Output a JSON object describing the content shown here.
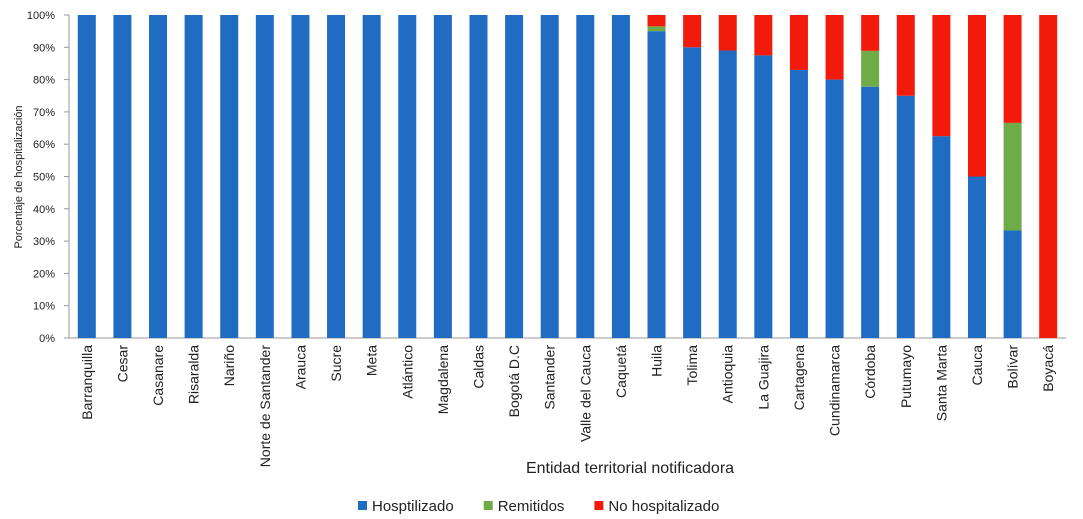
{
  "chart_data": {
    "type": "stacked_bar",
    "x_label": "Entidad territorial notificadora",
    "y_label": "Porcentaje de hospitalización",
    "categories": [
      "Barranquilla",
      "Cesar",
      "Casanare",
      "Risaralda",
      "Nariño",
      "Norte de Santander",
      "Arauca",
      "Sucre",
      "Meta",
      "Atlántico",
      "Magdalena",
      "Caldas",
      "Bogotá D.C",
      "Santander",
      "Valle del Cauca",
      "Caquetá",
      "Huila",
      "Tolima",
      "Antioquia",
      "La Guajira",
      "Cartagena",
      "Cundinamarca",
      "Córdoba",
      "Putumayo",
      "Santa Marta",
      "Cauca",
      "Bolívar",
      "Boyacá"
    ],
    "series": [
      {
        "name": "Hosptilizado",
        "color": "#1f6cc2",
        "values": [
          100,
          100,
          100,
          100,
          100,
          100,
          100,
          100,
          100,
          100,
          100,
          100,
          100,
          100,
          100,
          100,
          95,
          90,
          89,
          87.5,
          83,
          80,
          77.8,
          75,
          62.5,
          50,
          33.3,
          0
        ]
      },
      {
        "name": "Remitidos",
        "color": "#6fab47",
        "values": [
          0,
          0,
          0,
          0,
          0,
          0,
          0,
          0,
          0,
          0,
          0,
          0,
          0,
          0,
          0,
          0,
          1.5,
          0,
          0,
          0,
          0,
          0,
          11.1,
          0,
          0,
          0,
          33.3,
          0
        ]
      },
      {
        "name": "No hospitalizado",
        "color": "#f21a0a",
        "values": [
          0,
          0,
          0,
          0,
          0,
          0,
          0,
          0,
          0,
          0,
          0,
          0,
          0,
          0,
          0,
          0,
          3.5,
          10,
          11,
          12.5,
          17,
          20,
          11.1,
          25,
          37.5,
          50,
          33.4,
          100
        ]
      }
    ],
    "ylim": [
      0,
      100
    ],
    "yticks": [
      {
        "value": 0,
        "label": "0%"
      },
      {
        "value": 10,
        "label": "10%"
      },
      {
        "value": 20,
        "label": "20%"
      },
      {
        "value": 30,
        "label": "30%"
      },
      {
        "value": 40,
        "label": "40%"
      },
      {
        "value": 50,
        "label": "50%"
      },
      {
        "value": 60,
        "label": "60%"
      },
      {
        "value": 70,
        "label": "70%"
      },
      {
        "value": 80,
        "label": "80%"
      },
      {
        "value": 90,
        "label": "90%"
      },
      {
        "value": 100,
        "label": "100%"
      }
    ],
    "legend": "bottom"
  }
}
